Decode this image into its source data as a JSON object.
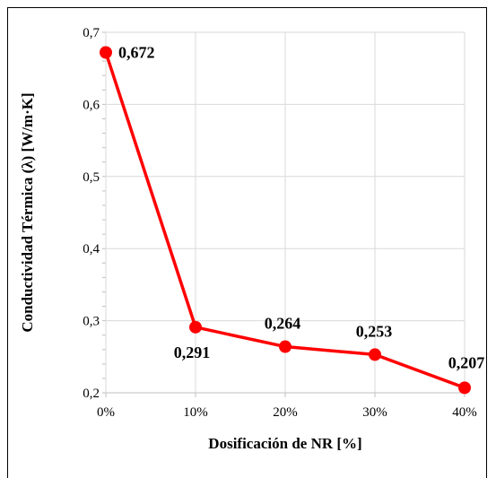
{
  "chart_data": {
    "type": "line",
    "xlabel": "Dosificación de NR [%]",
    "ylabel": "Conductividad Térmica (λ) [W/m·K]",
    "categories": [
      "0%",
      "10%",
      "20%",
      "30%",
      "40%"
    ],
    "x": [
      0,
      10,
      20,
      30,
      40
    ],
    "xlim": [
      0,
      40
    ],
    "ylim": [
      0.2,
      0.7
    ],
    "y_ticks": [
      0.2,
      0.3,
      0.4,
      0.5,
      0.6,
      0.7
    ],
    "y_tick_labels": [
      "0,2",
      "0,3",
      "0,4",
      "0,5",
      "0,6",
      "0,7"
    ],
    "grid": true,
    "series": [
      {
        "values": [
          0.672,
          0.291,
          0.264,
          0.253,
          0.207
        ],
        "data_labels": [
          "0,672",
          "0,291",
          "0,264",
          "0,253",
          "0,207"
        ],
        "color": "#ff0000"
      }
    ]
  }
}
